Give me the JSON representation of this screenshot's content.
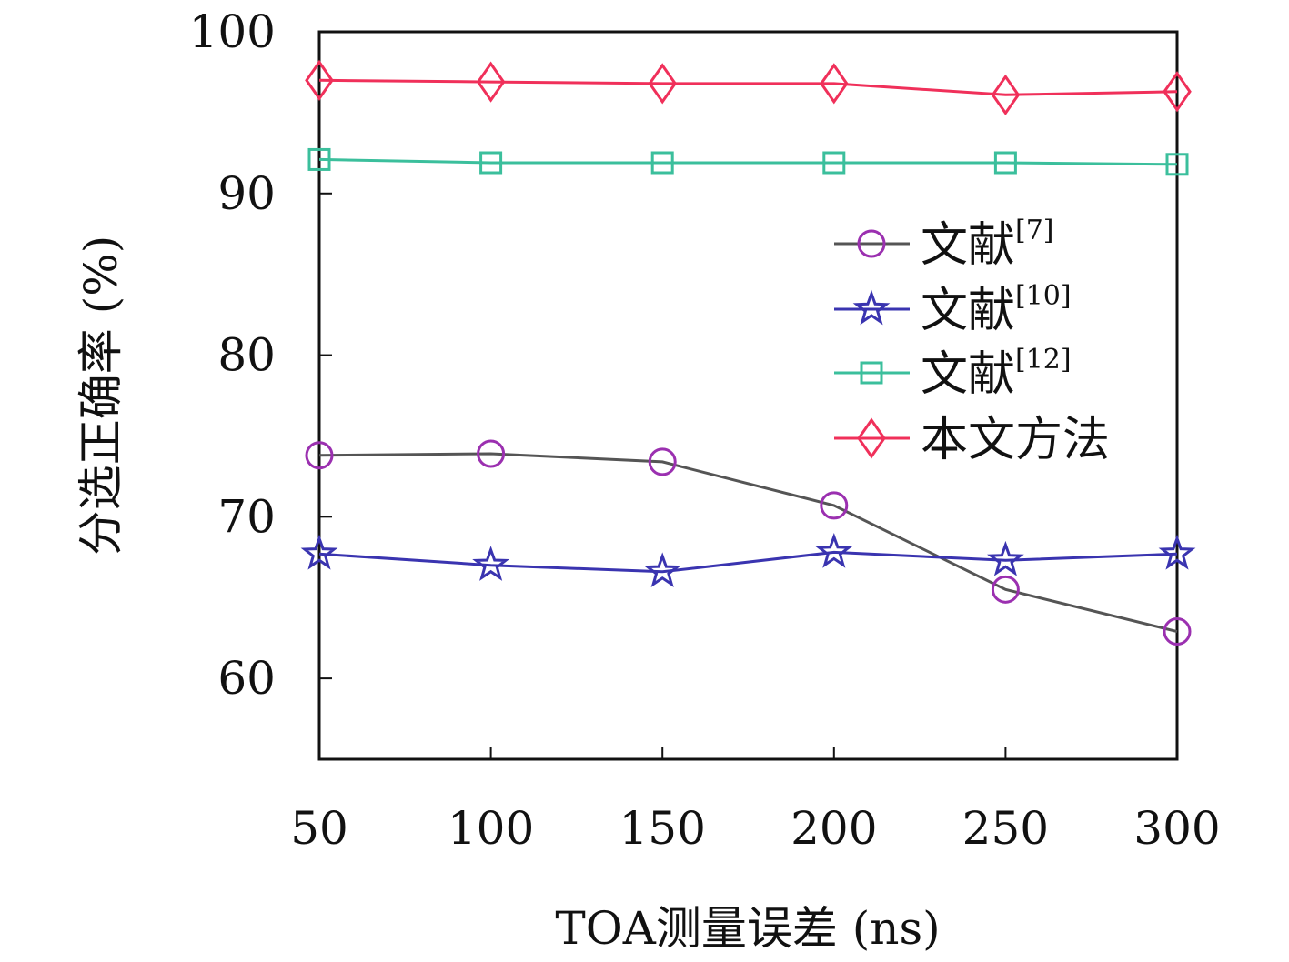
{
  "chart_data": {
    "type": "line",
    "xlabel": "TOA测量误差 (ns)",
    "ylabel": "分选正确率 (%)",
    "x": [
      50,
      100,
      150,
      200,
      250,
      300
    ],
    "x_tick_labels": [
      "50",
      "100",
      "150",
      "200",
      "250",
      "300"
    ],
    "y_tick_labels": [
      "60",
      "70",
      "80",
      "90",
      "100"
    ],
    "y_ticks": [
      60,
      70,
      80,
      90,
      100
    ],
    "xlim": [
      50,
      300
    ],
    "ylim": [
      55,
      100
    ],
    "grid": false,
    "legend_position": "right",
    "series": [
      {
        "name": "文献",
        "ref": "[7]",
        "marker": "circle",
        "line_color": "#555555",
        "marker_color": "#9b30b0",
        "values": [
          73.8,
          73.9,
          73.4,
          70.7,
          65.5,
          62.9
        ]
      },
      {
        "name": "文献",
        "ref": "[10]",
        "marker": "star",
        "line_color": "#3a34b0",
        "marker_color": "#3a34b0",
        "values": [
          67.7,
          67.0,
          66.6,
          67.8,
          67.3,
          67.7
        ]
      },
      {
        "name": "文献",
        "ref": "[12]",
        "marker": "square",
        "line_color": "#3bbf9c",
        "marker_color": "#3bbf9c",
        "values": [
          92.1,
          91.9,
          91.9,
          91.9,
          91.9,
          91.8
        ]
      },
      {
        "name": "本文方法",
        "ref": "",
        "marker": "diamond",
        "line_color": "#f0305a",
        "marker_color": "#f0305a",
        "values": [
          97.0,
          96.9,
          96.8,
          96.8,
          96.1,
          96.3
        ]
      }
    ]
  }
}
